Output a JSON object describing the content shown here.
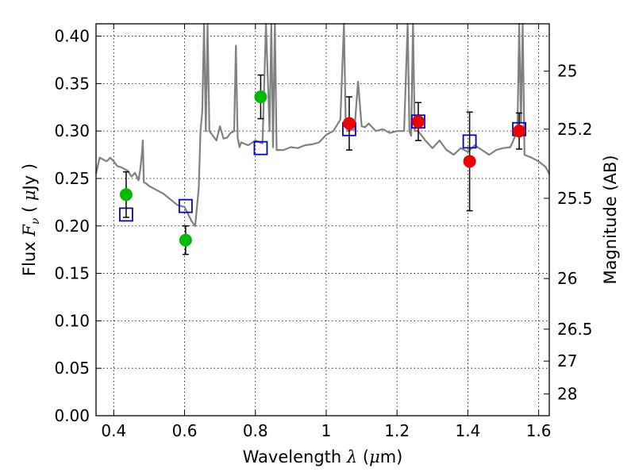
{
  "chart_data": {
    "type": "scatter",
    "xlabel": {
      "prefix": "Wavelength ",
      "symbol": "λ",
      "unit_open": " (",
      "unit_mu": "μ",
      "unit_rest": "m)"
    },
    "ylabel": {
      "prefix": "Flux  ",
      "symbol": "F",
      "subscript": "ν",
      "unit_open": "  ( ",
      "unit_mu": "μ",
      "unit_rest": "Jy )"
    },
    "y2label": "Magnitude (AB)",
    "xlim": [
      0.35,
      1.63
    ],
    "ylim": [
      0.0,
      0.413
    ],
    "grid": true,
    "x_ticks": [
      {
        "v": 0.4,
        "label": "0.4"
      },
      {
        "v": 0.6,
        "label": "0.6"
      },
      {
        "v": 0.8,
        "label": "0.8"
      },
      {
        "v": 1.0,
        "label": "1"
      },
      {
        "v": 1.2,
        "label": "1.2"
      },
      {
        "v": 1.4,
        "label": "1.4"
      },
      {
        "v": 1.6,
        "label": "1.6"
      }
    ],
    "y_ticks": [
      {
        "v": 0.0,
        "label": "0.00"
      },
      {
        "v": 0.05,
        "label": "0.05"
      },
      {
        "v": 0.1,
        "label": "0.10"
      },
      {
        "v": 0.15,
        "label": "0.15"
      },
      {
        "v": 0.2,
        "label": "0.20"
      },
      {
        "v": 0.25,
        "label": "0.25"
      },
      {
        "v": 0.3,
        "label": "0.30"
      },
      {
        "v": 0.35,
        "label": "0.35"
      },
      {
        "v": 0.4,
        "label": "0.40"
      }
    ],
    "y2_ticks": [
      {
        "mag": 25,
        "label": "25"
      },
      {
        "mag": 25.2,
        "label": "25.2"
      },
      {
        "mag": 25.5,
        "label": "25.5"
      },
      {
        "mag": 26,
        "label": "26"
      },
      {
        "mag": 26.5,
        "label": "26.5"
      },
      {
        "mag": 27,
        "label": "27"
      },
      {
        "mag": 28,
        "label": "28"
      }
    ],
    "colors": {
      "model": "#808080",
      "green": "#00bb00",
      "red": "#ee0000",
      "box": "#0000cc",
      "err": "#000000"
    },
    "series": [
      {
        "kind": "model-spectrum",
        "x": [
          0.35,
          0.36,
          0.37,
          0.38,
          0.39,
          0.4,
          0.41,
          0.42,
          0.43,
          0.44,
          0.45,
          0.46,
          0.47,
          0.475,
          0.48,
          0.482,
          0.485,
          0.49,
          0.5,
          0.52,
          0.54,
          0.56,
          0.58,
          0.6,
          0.62,
          0.63,
          0.64,
          0.645,
          0.65,
          0.655,
          0.66,
          0.665,
          0.67,
          0.68,
          0.69,
          0.7,
          0.71,
          0.72,
          0.73,
          0.74,
          0.745,
          0.75,
          0.755,
          0.76,
          0.78,
          0.8,
          0.82,
          0.83,
          0.84,
          0.845,
          0.85,
          0.855,
          0.86,
          0.88,
          0.9,
          0.92,
          0.94,
          0.96,
          0.98,
          1.0,
          1.02,
          1.04,
          1.05,
          1.055,
          1.06,
          1.08,
          1.09,
          1.1,
          1.11,
          1.12,
          1.14,
          1.16,
          1.18,
          1.2,
          1.22,
          1.23,
          1.235,
          1.24,
          1.245,
          1.25,
          1.26,
          1.28,
          1.3,
          1.32,
          1.34,
          1.36,
          1.38,
          1.4,
          1.42,
          1.44,
          1.46,
          1.48,
          1.5,
          1.52,
          1.54,
          1.545,
          1.55,
          1.555,
          1.56,
          1.58,
          1.6,
          1.62,
          1.63
        ],
        "y": [
          0.255,
          0.272,
          0.27,
          0.268,
          0.272,
          0.268,
          0.263,
          0.262,
          0.26,
          0.258,
          0.252,
          0.256,
          0.248,
          0.26,
          0.278,
          0.29,
          0.246,
          0.245,
          0.242,
          0.238,
          0.234,
          0.228,
          0.222,
          0.22,
          0.205,
          0.2,
          0.24,
          0.3,
          0.32,
          0.413,
          0.3,
          0.413,
          0.3,
          0.295,
          0.29,
          0.305,
          0.292,
          0.293,
          0.298,
          0.3,
          0.39,
          0.293,
          0.283,
          0.288,
          0.285,
          0.29,
          0.287,
          0.413,
          0.3,
          0.413,
          0.283,
          0.413,
          0.28,
          0.28,
          0.283,
          0.282,
          0.285,
          0.286,
          0.288,
          0.296,
          0.3,
          0.312,
          0.413,
          0.31,
          0.3,
          0.302,
          0.352,
          0.305,
          0.304,
          0.308,
          0.3,
          0.302,
          0.298,
          0.3,
          0.3,
          0.413,
          0.3,
          0.295,
          0.413,
          0.3,
          0.3,
          0.29,
          0.282,
          0.29,
          0.28,
          0.275,
          0.282,
          0.278,
          0.285,
          0.28,
          0.275,
          0.28,
          0.282,
          0.283,
          0.3,
          0.413,
          0.31,
          0.413,
          0.275,
          0.272,
          0.268,
          0.262,
          0.255
        ]
      },
      {
        "kind": "model-photometry",
        "marker": "open-square",
        "x": [
          0.435,
          0.603,
          0.815,
          1.065,
          1.26,
          1.405,
          1.545
        ],
        "y": [
          0.212,
          0.221,
          0.282,
          0.302,
          0.31,
          0.289,
          0.302
        ]
      },
      {
        "kind": "observed-optical",
        "marker": "filled-circle",
        "color": "green",
        "x": [
          0.435,
          0.603,
          0.815
        ],
        "y": [
          0.233,
          0.185,
          0.336
        ],
        "err": [
          0.024,
          0.015,
          0.023
        ]
      },
      {
        "kind": "observed-nir",
        "marker": "filled-circle",
        "color": "red",
        "x": [
          1.065,
          1.26,
          1.405,
          1.545
        ],
        "y": [
          0.308,
          0.31,
          0.268,
          0.3
        ],
        "err": [
          0.028,
          0.02,
          0.052,
          0.019
        ]
      }
    ]
  }
}
